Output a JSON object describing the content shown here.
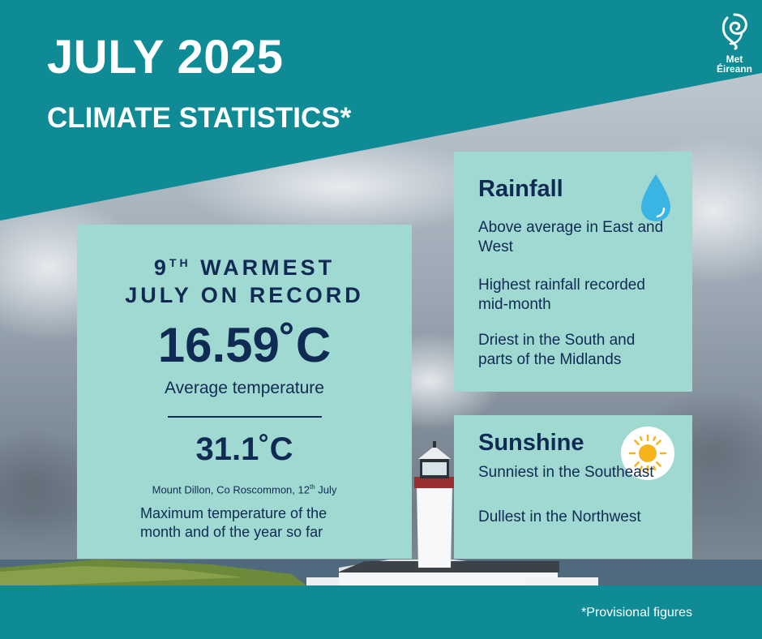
{
  "header": {
    "title": "JULY 2025",
    "subtitle": "CLIMATE STATISTICS*"
  },
  "logo": {
    "line1": "Met",
    "line2": "Éireann",
    "icon": "met-eireann-swirl-logo"
  },
  "temperature_card": {
    "rank_number": "9",
    "rank_suffix": "TH",
    "rank_rest": "WARMEST",
    "rank_line2": "JULY ON RECORD",
    "average_value": "16.59˚C",
    "average_label": "Average temperature",
    "max_value": "31.1˚C",
    "max_location_prefix": "Mount Dillon, Co Roscommon, 12",
    "max_location_suffix": "th",
    "max_location_end": " July",
    "max_description": "Maximum temperature of the month and of the year so far"
  },
  "rainfall_card": {
    "title": "Rainfall",
    "icon": "water-drop-icon",
    "items": [
      "Above average in East and West",
      "Highest rainfall recorded mid-month",
      "Driest in the South and parts of the Midlands"
    ]
  },
  "sunshine_card": {
    "title": "Sunshine",
    "icon": "sun-icon",
    "items": [
      "Sunniest in the Southeast",
      "Dullest in the Northwest"
    ]
  },
  "footer": {
    "footnote": "*Provisional figures"
  },
  "colors": {
    "teal": "#0e8b94",
    "card": "#9fd9d1",
    "navy": "#0f2b54",
    "sun": "#f5b41c",
    "drop": "#39b4e3"
  }
}
